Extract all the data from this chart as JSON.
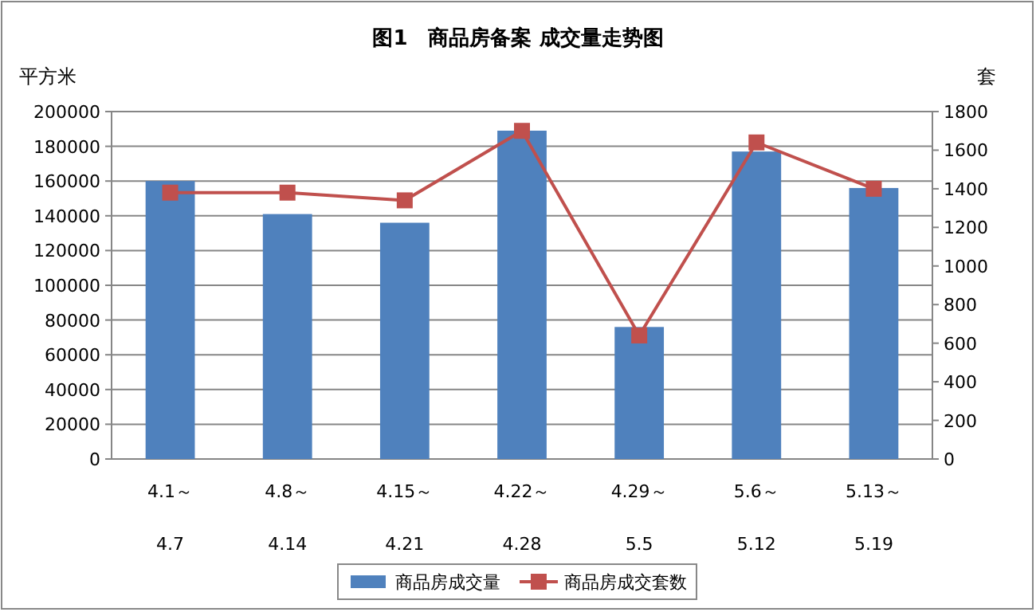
{
  "chart_data": {
    "type": "bar",
    "title": "图1　商品房备案 成交量走势图",
    "ylabel": "平方米",
    "y2label": "套",
    "categories": [
      "4.1～\n4.7",
      "4.8～\n4.14",
      "4.15～\n4.21",
      "4.22～\n4.28",
      "4.29～\n5.5",
      "5.6～\n5.12",
      "5.13～\n5.19"
    ],
    "series": [
      {
        "name": "商品房成交量",
        "color": "#4f81bd",
        "values": [
          160000,
          141000,
          136000,
          189000,
          76000,
          177000,
          156000
        ]
      },
      {
        "name": "商品房成交套数",
        "type": "line",
        "axis": "y2",
        "color": "#c0504d",
        "marker": "square",
        "values": [
          1380,
          1380,
          1340,
          1700,
          640,
          1640,
          1400
        ]
      }
    ],
    "ylim": [
      0,
      200000
    ],
    "yticks": [
      0,
      20000,
      40000,
      60000,
      80000,
      100000,
      120000,
      140000,
      160000,
      180000,
      200000
    ],
    "y2lim": [
      0,
      1800
    ],
    "y2ticks": [
      0,
      200,
      400,
      600,
      800,
      1000,
      1200,
      1400,
      1600,
      1800
    ],
    "grid": "y",
    "legend": "bottom"
  }
}
